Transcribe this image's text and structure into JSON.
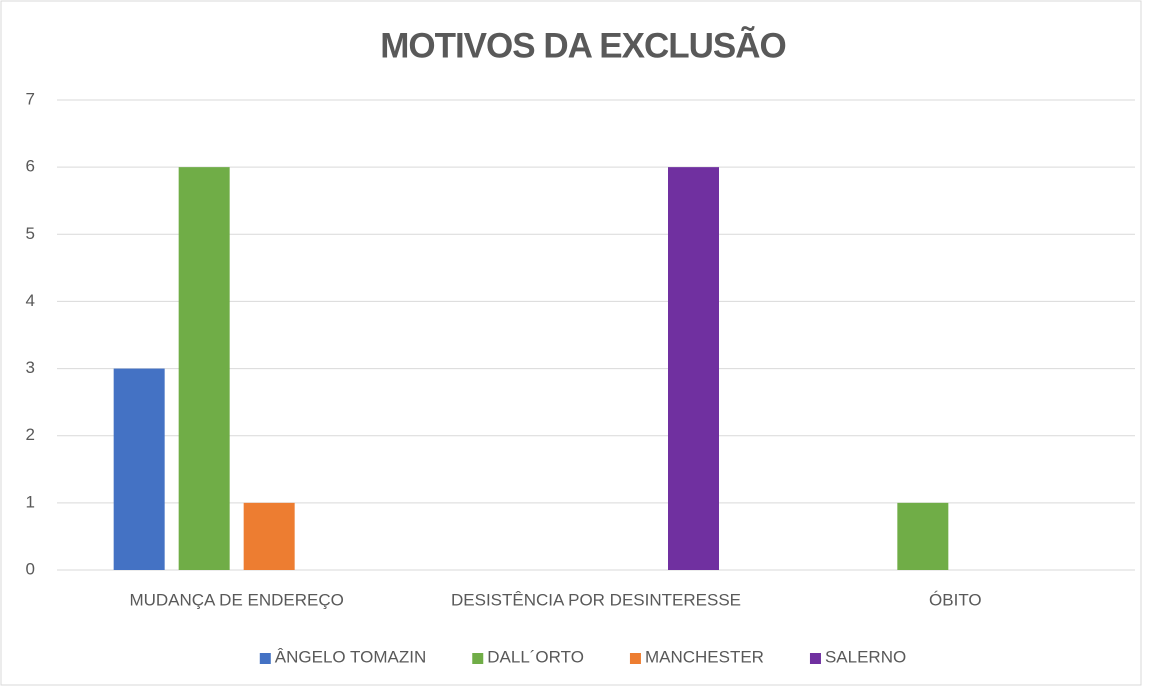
{
  "chart_data": {
    "type": "bar",
    "title": "MOTIVOS DA EXCLUSÃO",
    "categories": [
      "MUDANÇA DE ENDEREÇO",
      "DESISTÊNCIA POR DESINTERESSE",
      "ÓBITO"
    ],
    "series": [
      {
        "name": "ÂNGELO TOMAZIN",
        "color": "#4472c4",
        "values": [
          3,
          0,
          0
        ]
      },
      {
        "name": "DALL´ORTO",
        "color": "#70ad47",
        "values": [
          6,
          0,
          1
        ]
      },
      {
        "name": "MANCHESTER",
        "color": "#ed7d31",
        "values": [
          1,
          0,
          0
        ]
      },
      {
        "name": "SALERNO",
        "color": "#7030a0",
        "values": [
          0,
          6,
          0
        ]
      }
    ],
    "ylim": [
      0,
      7
    ],
    "yticks": [
      0,
      1,
      2,
      3,
      4,
      5,
      6,
      7
    ],
    "grid": true,
    "legend": "bottom"
  }
}
